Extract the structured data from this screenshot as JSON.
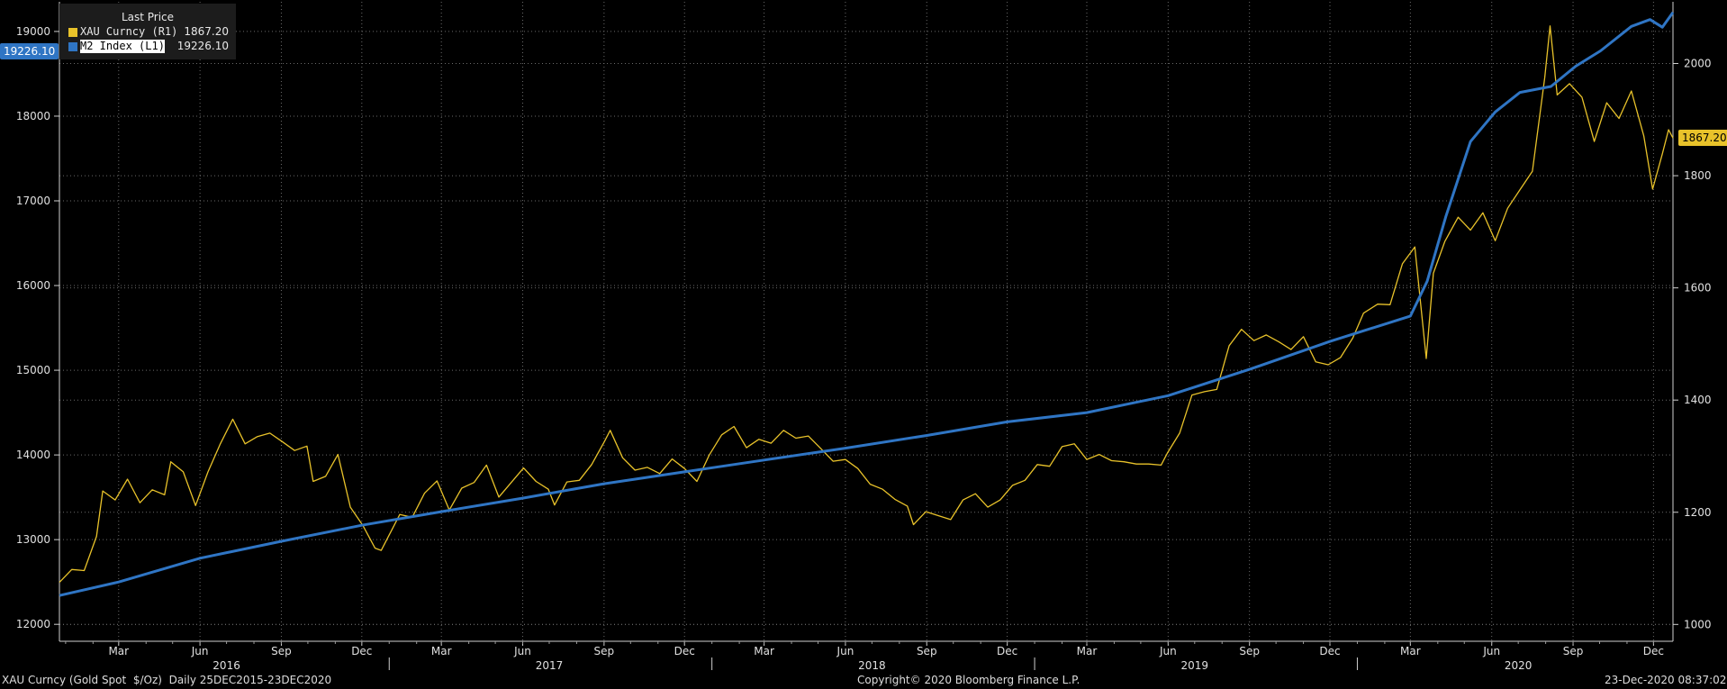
{
  "legend": {
    "header": "Last Price",
    "items": [
      {
        "label": "XAU Curncy  (R1)",
        "value": "1867.20",
        "color": "#E8C22A"
      },
      {
        "label": "M2 Index  (L1)",
        "value": "19226.10",
        "color": "#2F75C4"
      }
    ]
  },
  "tags": {
    "left": "19226.10",
    "right": "1867.20"
  },
  "footer": {
    "left": "XAU Curncy (Gold Spot  $/Oz)  Daily 25DEC2015-23DEC2020",
    "center": "Copyright© 2020 Bloomberg Finance L.P.",
    "right": "23-Dec-2020 08:37:02"
  },
  "chart_data": {
    "type": "line",
    "x_start": "2015-12-25",
    "x_end": "2020-12-23",
    "y_left": {
      "ylim": [
        11800,
        19350
      ],
      "ticks": [
        12000,
        13000,
        14000,
        15000,
        16000,
        17000,
        18000,
        19000
      ]
    },
    "y_right": {
      "ylim": [
        970,
        2110
      ],
      "ticks": [
        1000,
        1200,
        1400,
        1600,
        1800,
        2000
      ]
    },
    "x_month_labels": [
      {
        "date": "2016-03-01",
        "label": "Mar"
      },
      {
        "date": "2016-06-01",
        "label": "Jun"
      },
      {
        "date": "2016-09-01",
        "label": "Sep"
      },
      {
        "date": "2016-12-01",
        "label": "Dec"
      },
      {
        "date": "2017-03-01",
        "label": "Mar"
      },
      {
        "date": "2017-06-01",
        "label": "Jun"
      },
      {
        "date": "2017-09-01",
        "label": "Sep"
      },
      {
        "date": "2017-12-01",
        "label": "Dec"
      },
      {
        "date": "2018-03-01",
        "label": "Mar"
      },
      {
        "date": "2018-06-01",
        "label": "Jun"
      },
      {
        "date": "2018-09-01",
        "label": "Sep"
      },
      {
        "date": "2018-12-01",
        "label": "Dec"
      },
      {
        "date": "2019-03-01",
        "label": "Mar"
      },
      {
        "date": "2019-06-01",
        "label": "Jun"
      },
      {
        "date": "2019-09-01",
        "label": "Sep"
      },
      {
        "date": "2019-12-01",
        "label": "Dec"
      },
      {
        "date": "2020-03-01",
        "label": "Mar"
      },
      {
        "date": "2020-06-01",
        "label": "Jun"
      },
      {
        "date": "2020-09-01",
        "label": "Sep"
      },
      {
        "date": "2020-12-01",
        "label": "Dec"
      }
    ],
    "x_year_labels": [
      {
        "date": "2016-07-01",
        "label": "2016"
      },
      {
        "date": "2017-07-01",
        "label": "2017"
      },
      {
        "date": "2018-07-01",
        "label": "2018"
      },
      {
        "date": "2019-07-01",
        "label": "2019"
      },
      {
        "date": "2020-07-01",
        "label": "2020"
      }
    ],
    "x_year_dividers": [
      "2017-01-01",
      "2018-01-01",
      "2019-01-01",
      "2020-01-01"
    ],
    "grid": true,
    "series": [
      {
        "name": "XAU Curncy  (R1)",
        "axis": "right",
        "color": "#E8C22A",
        "points": [
          [
            "2015-12-25",
            1075
          ],
          [
            "2016-01-08",
            1098
          ],
          [
            "2016-01-22",
            1096
          ],
          [
            "2016-02-05",
            1157
          ],
          [
            "2016-02-12",
            1238
          ],
          [
            "2016-02-26",
            1222
          ],
          [
            "2016-03-11",
            1259
          ],
          [
            "2016-03-25",
            1217
          ],
          [
            "2016-04-08",
            1240
          ],
          [
            "2016-04-22",
            1231
          ],
          [
            "2016-04-29",
            1290
          ],
          [
            "2016-05-13",
            1272
          ],
          [
            "2016-05-27",
            1212
          ],
          [
            "2016-06-10",
            1272
          ],
          [
            "2016-06-24",
            1322
          ],
          [
            "2016-07-08",
            1366
          ],
          [
            "2016-07-22",
            1322
          ],
          [
            "2016-08-05",
            1335
          ],
          [
            "2016-08-19",
            1341
          ],
          [
            "2016-09-02",
            1326
          ],
          [
            "2016-09-16",
            1310
          ],
          [
            "2016-09-30",
            1318
          ],
          [
            "2016-10-07",
            1255
          ],
          [
            "2016-10-21",
            1264
          ],
          [
            "2016-11-04",
            1303
          ],
          [
            "2016-11-18",
            1209
          ],
          [
            "2016-12-02",
            1177
          ],
          [
            "2016-12-16",
            1136
          ],
          [
            "2016-12-23",
            1132
          ],
          [
            "2017-01-13",
            1196
          ],
          [
            "2017-01-27",
            1191
          ],
          [
            "2017-02-10",
            1234
          ],
          [
            "2017-02-24",
            1256
          ],
          [
            "2017-03-10",
            1204
          ],
          [
            "2017-03-24",
            1243
          ],
          [
            "2017-04-07",
            1253
          ],
          [
            "2017-04-21",
            1284
          ],
          [
            "2017-05-05",
            1227
          ],
          [
            "2017-05-19",
            1253
          ],
          [
            "2017-06-02",
            1279
          ],
          [
            "2017-06-16",
            1255
          ],
          [
            "2017-06-30",
            1241
          ],
          [
            "2017-07-07",
            1213
          ],
          [
            "2017-07-21",
            1254
          ],
          [
            "2017-08-04",
            1257
          ],
          [
            "2017-08-18",
            1285
          ],
          [
            "2017-09-01",
            1325
          ],
          [
            "2017-09-08",
            1346
          ],
          [
            "2017-09-22",
            1297
          ],
          [
            "2017-10-06",
            1275
          ],
          [
            "2017-10-20",
            1280
          ],
          [
            "2017-11-03",
            1269
          ],
          [
            "2017-11-17",
            1295
          ],
          [
            "2017-12-01",
            1278
          ],
          [
            "2017-12-15",
            1255
          ],
          [
            "2017-12-29",
            1302
          ],
          [
            "2018-01-12",
            1338
          ],
          [
            "2018-01-26",
            1353
          ],
          [
            "2018-02-09",
            1315
          ],
          [
            "2018-02-23",
            1330
          ],
          [
            "2018-03-09",
            1323
          ],
          [
            "2018-03-23",
            1346
          ],
          [
            "2018-04-06",
            1332
          ],
          [
            "2018-04-20",
            1336
          ],
          [
            "2018-05-04",
            1314
          ],
          [
            "2018-05-18",
            1291
          ],
          [
            "2018-06-01",
            1294
          ],
          [
            "2018-06-15",
            1278
          ],
          [
            "2018-06-29",
            1250
          ],
          [
            "2018-07-13",
            1241
          ],
          [
            "2018-07-27",
            1223
          ],
          [
            "2018-08-10",
            1211
          ],
          [
            "2018-08-17",
            1178
          ],
          [
            "2018-08-31",
            1201
          ],
          [
            "2018-09-14",
            1194
          ],
          [
            "2018-09-28",
            1187
          ],
          [
            "2018-10-12",
            1222
          ],
          [
            "2018-10-26",
            1233
          ],
          [
            "2018-11-09",
            1209
          ],
          [
            "2018-11-23",
            1222
          ],
          [
            "2018-12-07",
            1248
          ],
          [
            "2018-12-21",
            1257
          ],
          [
            "2019-01-04",
            1285
          ],
          [
            "2019-01-18",
            1282
          ],
          [
            "2019-02-01",
            1317
          ],
          [
            "2019-02-15",
            1322
          ],
          [
            "2019-03-01",
            1294
          ],
          [
            "2019-03-15",
            1303
          ],
          [
            "2019-03-29",
            1292
          ],
          [
            "2019-04-12",
            1290
          ],
          [
            "2019-04-26",
            1286
          ],
          [
            "2019-05-10",
            1286
          ],
          [
            "2019-05-24",
            1284
          ],
          [
            "2019-05-31",
            1305
          ],
          [
            "2019-06-14",
            1341
          ],
          [
            "2019-06-28",
            1409
          ],
          [
            "2019-07-12",
            1415
          ],
          [
            "2019-07-26",
            1419
          ],
          [
            "2019-08-09",
            1497
          ],
          [
            "2019-08-23",
            1526
          ],
          [
            "2019-09-06",
            1506
          ],
          [
            "2019-09-20",
            1516
          ],
          [
            "2019-10-04",
            1504
          ],
          [
            "2019-10-18",
            1490
          ],
          [
            "2019-11-01",
            1513
          ],
          [
            "2019-11-15",
            1468
          ],
          [
            "2019-11-29",
            1463
          ],
          [
            "2019-12-13",
            1476
          ],
          [
            "2019-12-27",
            1511
          ],
          [
            "2020-01-08",
            1555
          ],
          [
            "2020-01-24",
            1571
          ],
          [
            "2020-02-07",
            1570
          ],
          [
            "2020-02-21",
            1643
          ],
          [
            "2020-03-06",
            1673
          ],
          [
            "2020-03-19",
            1474
          ],
          [
            "2020-03-27",
            1626
          ],
          [
            "2020-04-09",
            1683
          ],
          [
            "2020-04-24",
            1726
          ],
          [
            "2020-05-08",
            1703
          ],
          [
            "2020-05-22",
            1734
          ],
          [
            "2020-06-05",
            1684
          ],
          [
            "2020-06-19",
            1742
          ],
          [
            "2020-07-03",
            1775
          ],
          [
            "2020-07-17",
            1808
          ],
          [
            "2020-07-31",
            1975
          ],
          [
            "2020-08-06",
            2067
          ],
          [
            "2020-08-14",
            1944
          ],
          [
            "2020-08-28",
            1964
          ],
          [
            "2020-09-11",
            1940
          ],
          [
            "2020-09-25",
            1861
          ],
          [
            "2020-10-09",
            1930
          ],
          [
            "2020-10-23",
            1902
          ],
          [
            "2020-11-06",
            1951
          ],
          [
            "2020-11-20",
            1871
          ],
          [
            "2020-11-30",
            1776
          ],
          [
            "2020-12-11",
            1839
          ],
          [
            "2020-12-18",
            1882
          ],
          [
            "2020-12-23",
            1867
          ]
        ]
      },
      {
        "name": "M2 Index  (L1)",
        "axis": "left",
        "color": "#2F75C4",
        "points": [
          [
            "2015-12-25",
            12340
          ],
          [
            "2016-03-01",
            12500
          ],
          [
            "2016-06-01",
            12780
          ],
          [
            "2016-09-01",
            12980
          ],
          [
            "2016-12-01",
            13170
          ],
          [
            "2017-03-01",
            13330
          ],
          [
            "2017-06-01",
            13490
          ],
          [
            "2017-09-01",
            13660
          ],
          [
            "2017-12-01",
            13800
          ],
          [
            "2018-03-01",
            13940
          ],
          [
            "2018-06-01",
            14080
          ],
          [
            "2018-09-01",
            14230
          ],
          [
            "2018-12-01",
            14390
          ],
          [
            "2019-03-01",
            14500
          ],
          [
            "2019-06-01",
            14700
          ],
          [
            "2019-09-01",
            15010
          ],
          [
            "2019-12-01",
            15340
          ],
          [
            "2020-03-01",
            15640
          ],
          [
            "2020-03-20",
            16050
          ],
          [
            "2020-04-10",
            16810
          ],
          [
            "2020-05-08",
            17700
          ],
          [
            "2020-06-05",
            18050
          ],
          [
            "2020-07-03",
            18280
          ],
          [
            "2020-08-07",
            18350
          ],
          [
            "2020-09-04",
            18590
          ],
          [
            "2020-10-02",
            18770
          ],
          [
            "2020-11-06",
            19060
          ],
          [
            "2020-11-27",
            19140
          ],
          [
            "2020-12-11",
            19050
          ],
          [
            "2020-12-23",
            19226.1
          ]
        ]
      }
    ]
  }
}
